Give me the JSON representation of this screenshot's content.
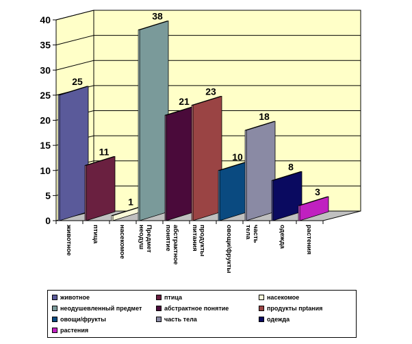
{
  "chart_data": {
    "type": "bar",
    "categories": [
      "животное",
      "птица",
      "насекомое",
      "Предмет неодуш",
      "абстрактное понятие",
      "продукты питания",
      "овощи/фрукты",
      "часть тела",
      "одежда",
      "растения"
    ],
    "values": [
      25,
      11,
      1,
      38,
      21,
      23,
      10,
      18,
      8,
      3
    ],
    "colors": [
      "#5a5a9a",
      "#6a2040",
      "#f8f8d8",
      "#7a9a9a",
      "#4a0a3a",
      "#9a4444",
      "#0a4a80",
      "#8a8aa4",
      "#0a0a60",
      "#c020c0"
    ],
    "ylim": [
      0,
      40
    ],
    "yticks": [
      "0",
      "5",
      "10",
      "15",
      "20",
      "25",
      "30",
      "35",
      "40"
    ],
    "grid": true,
    "legend_position": "bottom",
    "legend": [
      "животное",
      "птица",
      "насекомое",
      "неодушевленный предмет",
      "абстрактное понятие",
      "продукты прtания",
      "овощи/фрукты",
      "часть тела",
      "одежда",
      "растения"
    ]
  }
}
